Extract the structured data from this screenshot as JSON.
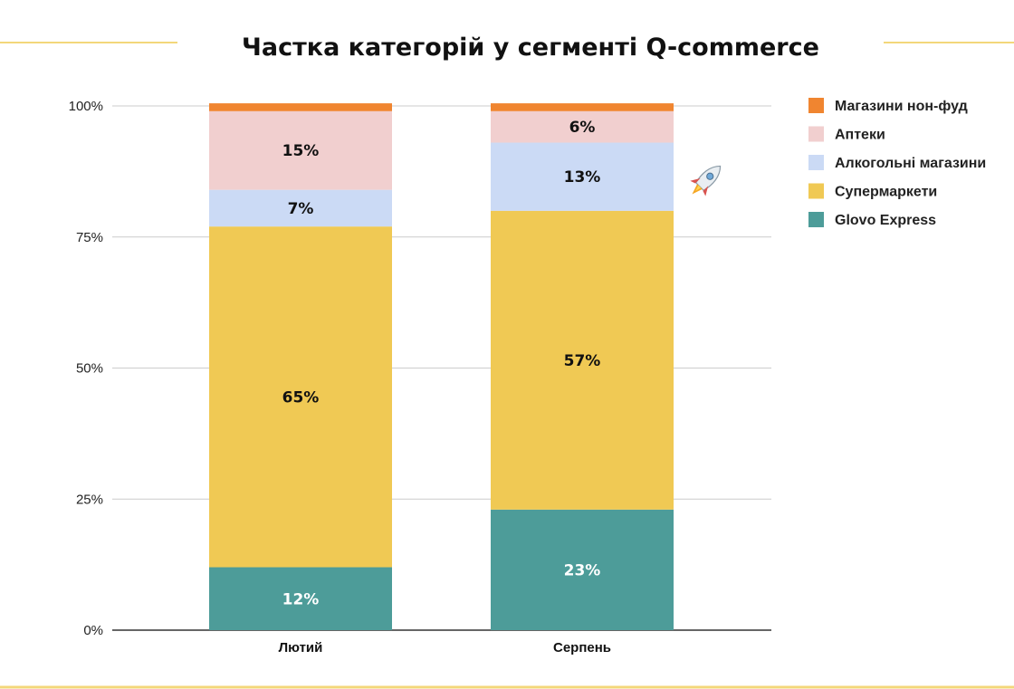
{
  "title": "Частка категорій у сегменті Q-commerce",
  "colors": {
    "accent_line": "#f3d77a",
    "grid": "#cccccc",
    "axis": "#333333"
  },
  "decoration": {
    "rocket_icon": "rocket-emoji"
  },
  "chart_data": {
    "type": "bar",
    "stacked": true,
    "normalized": true,
    "title": "Частка категорій у сегменті Q-commerce",
    "xlabel": "",
    "ylabel": "",
    "categories": [
      "Лютий",
      "Серпень"
    ],
    "ylim": [
      0,
      100
    ],
    "yticks": [
      "0%",
      "25%",
      "50%",
      "75%",
      "100%"
    ],
    "ytick_values": [
      0,
      25,
      50,
      75,
      100
    ],
    "grid": true,
    "legend_position": "right",
    "series": [
      {
        "name": "Glovo Express",
        "color": "#4d9c99",
        "values": [
          12,
          23
        ],
        "labels": [
          "12%",
          "23%"
        ],
        "label_color": "#ffffff"
      },
      {
        "name": "Супермаркети",
        "color": "#f0c954",
        "values": [
          65,
          57
        ],
        "labels": [
          "65%",
          "57%"
        ],
        "label_color": "#111111"
      },
      {
        "name": "Алкогольні магазини",
        "color": "#cbdaf5",
        "values": [
          7,
          13
        ],
        "labels": [
          "7%",
          "13%"
        ],
        "label_color": "#111111"
      },
      {
        "name": "Аптеки",
        "color": "#f1cfcf",
        "values": [
          15,
          6
        ],
        "labels": [
          "15%",
          "6%"
        ],
        "label_color": "#111111"
      },
      {
        "name": "Магазини нон-фуд",
        "color": "#f08530",
        "values": [
          1.5,
          1.5
        ],
        "labels": [
          "",
          ""
        ],
        "label_color": "#111111"
      }
    ],
    "legend_order": [
      "Магазини нон-фуд",
      "Аптеки",
      "Алкогольні магазини",
      "Супермаркети",
      "Glovo Express"
    ]
  }
}
